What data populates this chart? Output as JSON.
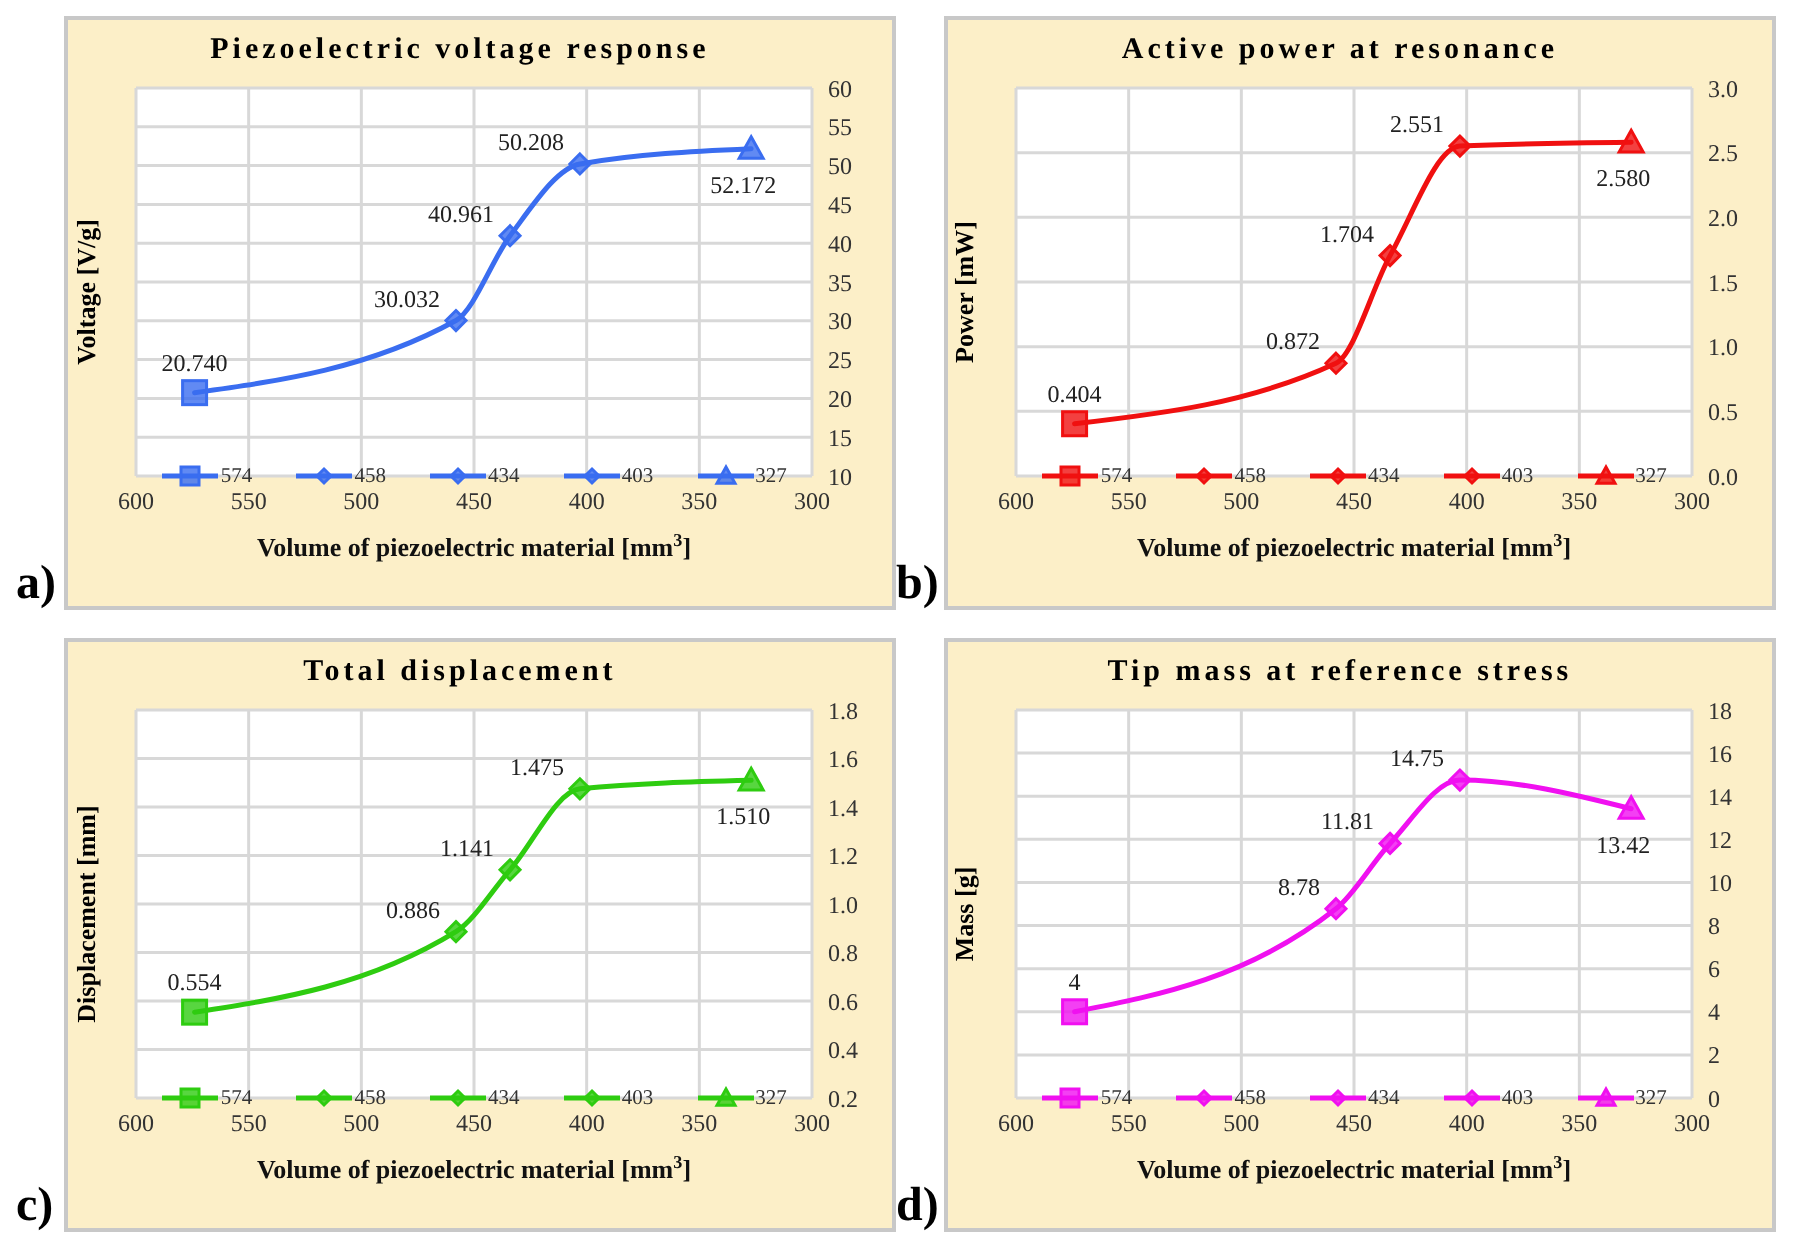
{
  "chart_data": [
    {
      "type": "line",
      "title": "Piezoelectric voltage response",
      "xlabel": "Volume of piezoelectric material [mm$^{3}$]",
      "ylabel": "Voltage [V/g]",
      "annotations": [
        "a)"
      ],
      "xlim": [
        600,
        300
      ],
      "xticks": [
        600,
        550,
        500,
        450,
        400,
        350,
        300
      ],
      "ylim": [
        10,
        60
      ],
      "yticks": [
        10,
        15,
        20,
        25,
        30,
        35,
        40,
        45,
        50,
        55,
        60
      ],
      "grid": true,
      "legend": "bottom",
      "line_style": "solid",
      "series": [
        {
          "color": "#3a6df0",
          "marker": "none",
          "x": [
            574,
            458,
            434,
            403,
            327
          ],
          "values": [
            20.74,
            30.032,
            40.961,
            50.208,
            52.172
          ]
        },
        {
          "name": "574",
          "color": "#3a6df0",
          "marker": "square",
          "x": [
            574
          ],
          "values": [
            20.74
          ],
          "value_labels": [
            "20.740"
          ]
        },
        {
          "name": "458",
          "color": "#3a6df0",
          "marker": "diamond",
          "x": [
            458
          ],
          "values": [
            30.032
          ],
          "value_labels": [
            "30.032"
          ]
        },
        {
          "name": "434",
          "color": "#3a6df0",
          "marker": "diamond",
          "x": [
            434
          ],
          "values": [
            40.961
          ],
          "value_labels": [
            "40.961"
          ]
        },
        {
          "name": "403",
          "color": "#3a6df0",
          "marker": "diamond",
          "x": [
            403
          ],
          "values": [
            50.208
          ],
          "value_labels": [
            "50.208"
          ]
        },
        {
          "name": "327",
          "color": "#3a6df0",
          "marker": "triangle",
          "x": [
            327
          ],
          "values": [
            52.172
          ],
          "value_labels": [
            "52.172"
          ]
        }
      ]
    },
    {
      "type": "line",
      "title": "Active power at resonance",
      "xlabel": "Volume of piezoelectric material [mm$^{3}$]",
      "ylabel": "Power [mW]",
      "annotations": [
        "b)"
      ],
      "xlim": [
        600,
        300
      ],
      "xticks": [
        600,
        550,
        500,
        450,
        400,
        350,
        300
      ],
      "ylim": [
        0,
        3
      ],
      "yticks": [
        {
          "value": 0,
          "label": "0.0"
        },
        {
          "value": 0.5,
          "label": "0.5"
        },
        {
          "value": 1,
          "label": "1.0"
        },
        {
          "value": 1.5,
          "label": "1.5"
        },
        {
          "value": 2,
          "label": "2.0"
        },
        {
          "value": 2.5,
          "label": "2.5"
        },
        {
          "value": 3,
          "label": "3.0"
        }
      ],
      "grid": true,
      "legend": "bottom",
      "line_style": "solid",
      "series": [
        {
          "color": "#f01010",
          "marker": "none",
          "x": [
            574,
            458,
            434,
            403,
            327
          ],
          "values": [
            0.404,
            0.872,
            1.704,
            2.551,
            2.58
          ]
        },
        {
          "name": "574",
          "color": "#f01010",
          "marker": "square",
          "x": [
            574
          ],
          "values": [
            0.404
          ],
          "value_labels": [
            "0.404"
          ]
        },
        {
          "name": "458",
          "color": "#f01010",
          "marker": "diamond",
          "x": [
            458
          ],
          "values": [
            0.872
          ],
          "value_labels": [
            "0.872"
          ]
        },
        {
          "name": "434",
          "color": "#f01010",
          "marker": "diamond",
          "x": [
            434
          ],
          "values": [
            1.704
          ],
          "value_labels": [
            "1.704"
          ]
        },
        {
          "name": "403",
          "color": "#f01010",
          "marker": "diamond",
          "x": [
            403
          ],
          "values": [
            2.551
          ],
          "value_labels": [
            "2.551"
          ]
        },
        {
          "name": "327",
          "color": "#f01010",
          "marker": "triangle",
          "x": [
            327
          ],
          "values": [
            2.58
          ],
          "value_labels": [
            "2.580"
          ]
        }
      ]
    },
    {
      "type": "line",
      "title": "Total displacement",
      "xlabel": "Volume of piezoelectric material [mm$^{3}$]",
      "ylabel": "Displacement [mm]",
      "annotations": [
        "c)"
      ],
      "xlim": [
        600,
        300
      ],
      "xticks": [
        600,
        550,
        500,
        450,
        400,
        350,
        300
      ],
      "ylim": [
        0.2,
        1.8
      ],
      "yticks": [
        0.2,
        0.4,
        0.6,
        0.8,
        {
          "value": 1,
          "label": "1.0"
        },
        1.2,
        1.4,
        1.6,
        1.8
      ],
      "grid": true,
      "legend": "bottom",
      "line_style": "solid",
      "series": [
        {
          "color": "#2ecc10",
          "marker": "none",
          "x": [
            574,
            458,
            434,
            403,
            327
          ],
          "values": [
            0.554,
            0.886,
            1.141,
            1.475,
            1.51
          ]
        },
        {
          "name": "574",
          "color": "#2ecc10",
          "marker": "square",
          "x": [
            574
          ],
          "values": [
            0.554
          ],
          "value_labels": [
            "0.554"
          ]
        },
        {
          "name": "458",
          "color": "#2ecc10",
          "marker": "diamond",
          "x": [
            458
          ],
          "values": [
            0.886
          ],
          "value_labels": [
            "0.886"
          ]
        },
        {
          "name": "434",
          "color": "#2ecc10",
          "marker": "diamond",
          "x": [
            434
          ],
          "values": [
            1.141
          ],
          "value_labels": [
            "1.141"
          ]
        },
        {
          "name": "403",
          "color": "#2ecc10",
          "marker": "diamond",
          "x": [
            403
          ],
          "values": [
            1.475
          ],
          "value_labels": [
            "1.475"
          ]
        },
        {
          "name": "327",
          "color": "#2ecc10",
          "marker": "triangle",
          "x": [
            327
          ],
          "values": [
            1.51
          ],
          "value_labels": [
            "1.510"
          ]
        }
      ]
    },
    {
      "type": "line",
      "title": "Tip mass at reference stress",
      "xlabel": "Volume of piezoelectric material [mm$^{3}$]",
      "ylabel": "Mass [g]",
      "annotations": [
        "d)"
      ],
      "xlim": [
        600,
        300
      ],
      "xticks": [
        600,
        550,
        500,
        450,
        400,
        350,
        300
      ],
      "ylim": [
        0,
        18
      ],
      "yticks": [
        0,
        2,
        4,
        6,
        8,
        10,
        12,
        14,
        16,
        18
      ],
      "grid": true,
      "legend": "bottom",
      "line_style": "solid",
      "series": [
        {
          "color": "#f010f0",
          "marker": "none",
          "x": [
            574,
            458,
            434,
            403,
            327
          ],
          "values": [
            4,
            8.78,
            11.81,
            14.75,
            13.42
          ]
        },
        {
          "name": "574",
          "color": "#f010f0",
          "marker": "square",
          "x": [
            574
          ],
          "values": [
            4
          ],
          "value_labels": [
            "4"
          ]
        },
        {
          "name": "458",
          "color": "#f010f0",
          "marker": "diamond",
          "x": [
            458
          ],
          "values": [
            8.78
          ],
          "value_labels": [
            "8.78"
          ]
        },
        {
          "name": "434",
          "color": "#f010f0",
          "marker": "diamond",
          "x": [
            434
          ],
          "values": [
            11.81
          ],
          "value_labels": [
            "11.81"
          ]
        },
        {
          "name": "403",
          "color": "#f010f0",
          "marker": "diamond",
          "x": [
            403
          ],
          "values": [
            14.75
          ],
          "value_labels": [
            "14.75"
          ]
        },
        {
          "name": "327",
          "color": "#f010f0",
          "marker": "triangle",
          "x": [
            327
          ],
          "values": [
            13.42
          ],
          "value_labels": [
            "13.42"
          ]
        }
      ]
    }
  ]
}
